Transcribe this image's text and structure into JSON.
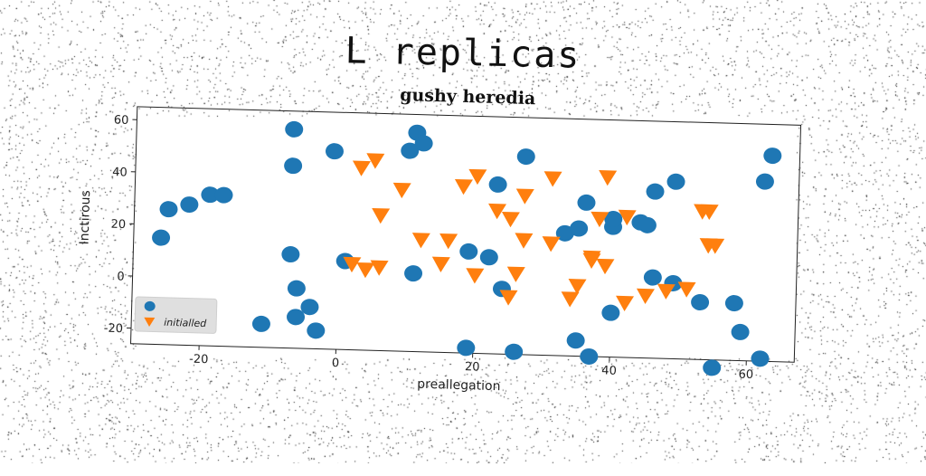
{
  "page_title": "L replicas",
  "chart_data": {
    "type": "scatter",
    "title": "gushy heredia",
    "xlabel": "preallegation",
    "ylabel": "Inctirous",
    "xlim": [
      -30,
      67
    ],
    "ylim": [
      -26,
      65
    ],
    "xticks": [
      -20,
      0,
      20,
      40,
      60
    ],
    "yticks": [
      -20,
      0,
      20,
      40,
      60
    ],
    "grid": false,
    "legend_position": "lower-left",
    "series": [
      {
        "name": "",
        "marker": "circle",
        "color": "#1f77b4",
        "points": [
          [
            -26,
            15
          ],
          [
            -25,
            26
          ],
          [
            -22,
            28
          ],
          [
            -19,
            32
          ],
          [
            -17,
            32
          ],
          [
            -11,
            -17
          ],
          [
            -7,
            58
          ],
          [
            -7,
            44
          ],
          [
            -7,
            10
          ],
          [
            -6,
            -14
          ],
          [
            -6,
            -3
          ],
          [
            -4,
            -10
          ],
          [
            -3,
            -19
          ],
          [
            -1,
            50
          ],
          [
            1,
            8
          ],
          [
            10,
            51
          ],
          [
            11,
            58
          ],
          [
            12,
            54
          ],
          [
            11,
            4
          ],
          [
            19,
            13
          ],
          [
            22,
            11
          ],
          [
            23,
            39
          ],
          [
            24,
            -1
          ],
          [
            26,
            -25
          ],
          [
            27,
            50
          ],
          [
            19,
            -24
          ],
          [
            33,
            21
          ],
          [
            35,
            23
          ],
          [
            36,
            33
          ],
          [
            35,
            -20
          ],
          [
            37,
            -26
          ],
          [
            40,
            -9
          ],
          [
            40,
            24
          ],
          [
            40,
            27
          ],
          [
            44,
            26
          ],
          [
            45,
            25
          ],
          [
            46,
            5
          ],
          [
            46,
            38
          ],
          [
            49,
            3
          ],
          [
            49,
            42
          ],
          [
            53,
            -4
          ],
          [
            55,
            -29
          ],
          [
            58,
            -4
          ],
          [
            59,
            -15
          ],
          [
            62,
            43
          ],
          [
            62,
            -25
          ],
          [
            63,
            53
          ]
        ]
      },
      {
        "name": "initialled",
        "marker": "triangle-down",
        "color": "#ff7f0e",
        "points": [
          [
            2,
            7
          ],
          [
            3,
            44
          ],
          [
            4,
            5
          ],
          [
            5,
            47
          ],
          [
            6,
            6
          ],
          [
            6,
            26
          ],
          [
            9,
            36
          ],
          [
            12,
            17
          ],
          [
            15,
            8
          ],
          [
            16,
            17
          ],
          [
            18,
            38
          ],
          [
            20,
            42
          ],
          [
            20,
            4
          ],
          [
            23,
            29
          ],
          [
            25,
            26
          ],
          [
            25,
            -4
          ],
          [
            26,
            5
          ],
          [
            27,
            18
          ],
          [
            27,
            35
          ],
          [
            31,
            17
          ],
          [
            31,
            42
          ],
          [
            34,
            -4
          ],
          [
            35,
            1
          ],
          [
            37,
            12
          ],
          [
            37,
            11
          ],
          [
            38,
            27
          ],
          [
            39,
            9
          ],
          [
            39,
            43
          ],
          [
            42,
            28
          ],
          [
            42,
            -5
          ],
          [
            45,
            -2
          ],
          [
            48,
            0
          ],
          [
            51,
            1
          ],
          [
            53,
            31
          ],
          [
            54,
            31
          ],
          [
            54,
            18
          ],
          [
            55,
            18
          ]
        ]
      }
    ]
  }
}
